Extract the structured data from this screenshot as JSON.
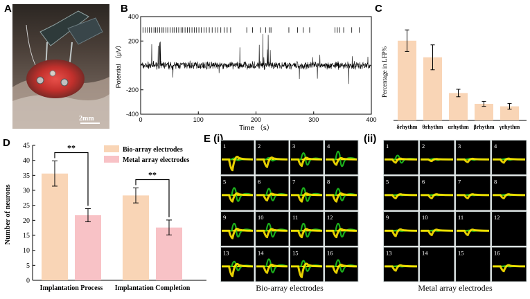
{
  "panel_labels": {
    "a": "A",
    "b": "B",
    "c": "C",
    "d": "D",
    "e": "E (i)",
    "e2": "(ii)"
  },
  "photo": {
    "scale_bar": "2mm"
  },
  "colors": {
    "bar_peach": "#f9d5b6",
    "bar_pink": "#f8c2c6",
    "spike_yellow": "#ffe600",
    "spike_green": "#1fc21f",
    "tile_bg": "#000000"
  },
  "chart_data": [
    {
      "id": "B",
      "type": "line",
      "title": "",
      "xlabel": "Time （s）",
      "ylabel": "Potential （μV）",
      "xlim": [
        0,
        400
      ],
      "ylim": [
        -400,
        400
      ],
      "xticks": [
        "0",
        "100",
        "200",
        "300",
        "400"
      ],
      "yticks": [
        "400",
        "200",
        "-200",
        "-400"
      ],
      "spike_times": [
        4,
        8,
        12,
        15,
        19,
        23,
        26,
        29,
        33,
        37,
        40,
        44,
        47,
        51,
        55,
        58,
        62,
        66,
        70,
        73,
        77,
        81,
        85,
        89,
        93,
        97,
        101,
        105,
        110,
        114,
        119,
        124,
        129,
        134,
        139,
        145,
        150,
        156,
        184,
        194,
        208,
        217,
        223,
        226,
        257,
        272,
        282,
        293,
        337,
        341,
        345,
        352,
        366,
        379
      ]
    },
    {
      "id": "C",
      "type": "bar",
      "ylabel": "Percentage in LFP%",
      "categories": [
        "δrhythm",
        "θrhythm",
        "αrhythm",
        "βrhythm",
        "γrhythm"
      ],
      "values": [
        19.2,
        15.2,
        6.6,
        4.0,
        3.4
      ],
      "errors": [
        2.6,
        3.0,
        0.9,
        0.6,
        0.7
      ],
      "ylim": [
        0,
        25
      ]
    },
    {
      "id": "D",
      "type": "bar",
      "ylabel": "Number of neurons",
      "categories": [
        "Implantation Process",
        "Implantation Completion"
      ],
      "series": [
        {
          "name": "Bio-array electrodes",
          "values": [
            35.6,
            28.3
          ],
          "errors": [
            4.2,
            2.5
          ]
        },
        {
          "name": "Metal array electrodes",
          "values": [
            21.7,
            17.6
          ],
          "errors": [
            2.2,
            2.5
          ]
        }
      ],
      "yticks": [
        "0",
        "5",
        "10",
        "15",
        "20",
        "25",
        "30",
        "35",
        "40",
        "45"
      ],
      "ylim": [
        0,
        45
      ],
      "significance": [
        "**",
        "**"
      ]
    }
  ],
  "grids": {
    "left": {
      "caption": "Bio-array electrodes",
      "cells": [
        {
          "n": "1",
          "yellow": 1.0,
          "green": 0.15
        },
        {
          "n": "2",
          "yellow": 0.7,
          "green": 0.2
        },
        {
          "n": "3",
          "yellow": 0.6,
          "green": 0.8
        },
        {
          "n": "4",
          "yellow": 0.5,
          "green": 1.0
        },
        {
          "n": "5",
          "yellow": 0.6,
          "green": 0.9
        },
        {
          "n": "6",
          "yellow": 0.5,
          "green": 0.8
        },
        {
          "n": "7",
          "yellow": 0.6,
          "green": 0.9
        },
        {
          "n": "8",
          "yellow": 0.6,
          "green": 0.8
        },
        {
          "n": "9",
          "yellow": 0.7,
          "green": 0.9
        },
        {
          "n": "10",
          "yellow": 0.6,
          "green": 0.9
        },
        {
          "n": "11",
          "yellow": 0.6,
          "green": 0.9
        },
        {
          "n": "12",
          "yellow": 0.6,
          "green": 0.9
        },
        {
          "n": "13",
          "yellow": 0.9,
          "green": 0.6
        },
        {
          "n": "14",
          "yellow": 0.6,
          "green": 0.9
        },
        {
          "n": "15",
          "yellow": 1.0,
          "green": 0.7
        },
        {
          "n": "16",
          "yellow": 0.6,
          "green": 0.8
        }
      ]
    },
    "right": {
      "caption": "Metal array electrodes",
      "cells": [
        {
          "n": "1",
          "yellow": 0.3,
          "green": 0.5
        },
        {
          "n": "2",
          "yellow": 0.15,
          "green": 0.1
        },
        {
          "n": "3",
          "yellow": 0.25,
          "green": 0.1
        },
        {
          "n": "4",
          "yellow": 0.3,
          "green": 0.1
        },
        {
          "n": "5",
          "yellow": 0.3,
          "green": 0.05
        },
        {
          "n": "6",
          "yellow": 0.3,
          "green": 0.05
        },
        {
          "n": "7",
          "yellow": 0.3,
          "green": 0.05
        },
        {
          "n": "8",
          "yellow": 0.3,
          "green": 0.05
        },
        {
          "n": "9",
          "yellow": 0.5,
          "green": 0.05
        },
        {
          "n": "10",
          "yellow": 0.4,
          "green": 0.05
        },
        {
          "n": "11",
          "yellow": 0.4,
          "green": 0.05
        },
        {
          "n": "12",
          "yellow": 0.0,
          "green": 0.0
        },
        {
          "n": "13",
          "yellow": 0.4,
          "green": 0.05
        },
        {
          "n": "14",
          "yellow": 0.0,
          "green": 0.0
        },
        {
          "n": "15",
          "yellow": 0.0,
          "green": 0.0
        },
        {
          "n": "16",
          "yellow": 0.45,
          "green": 0.05
        }
      ]
    }
  }
}
